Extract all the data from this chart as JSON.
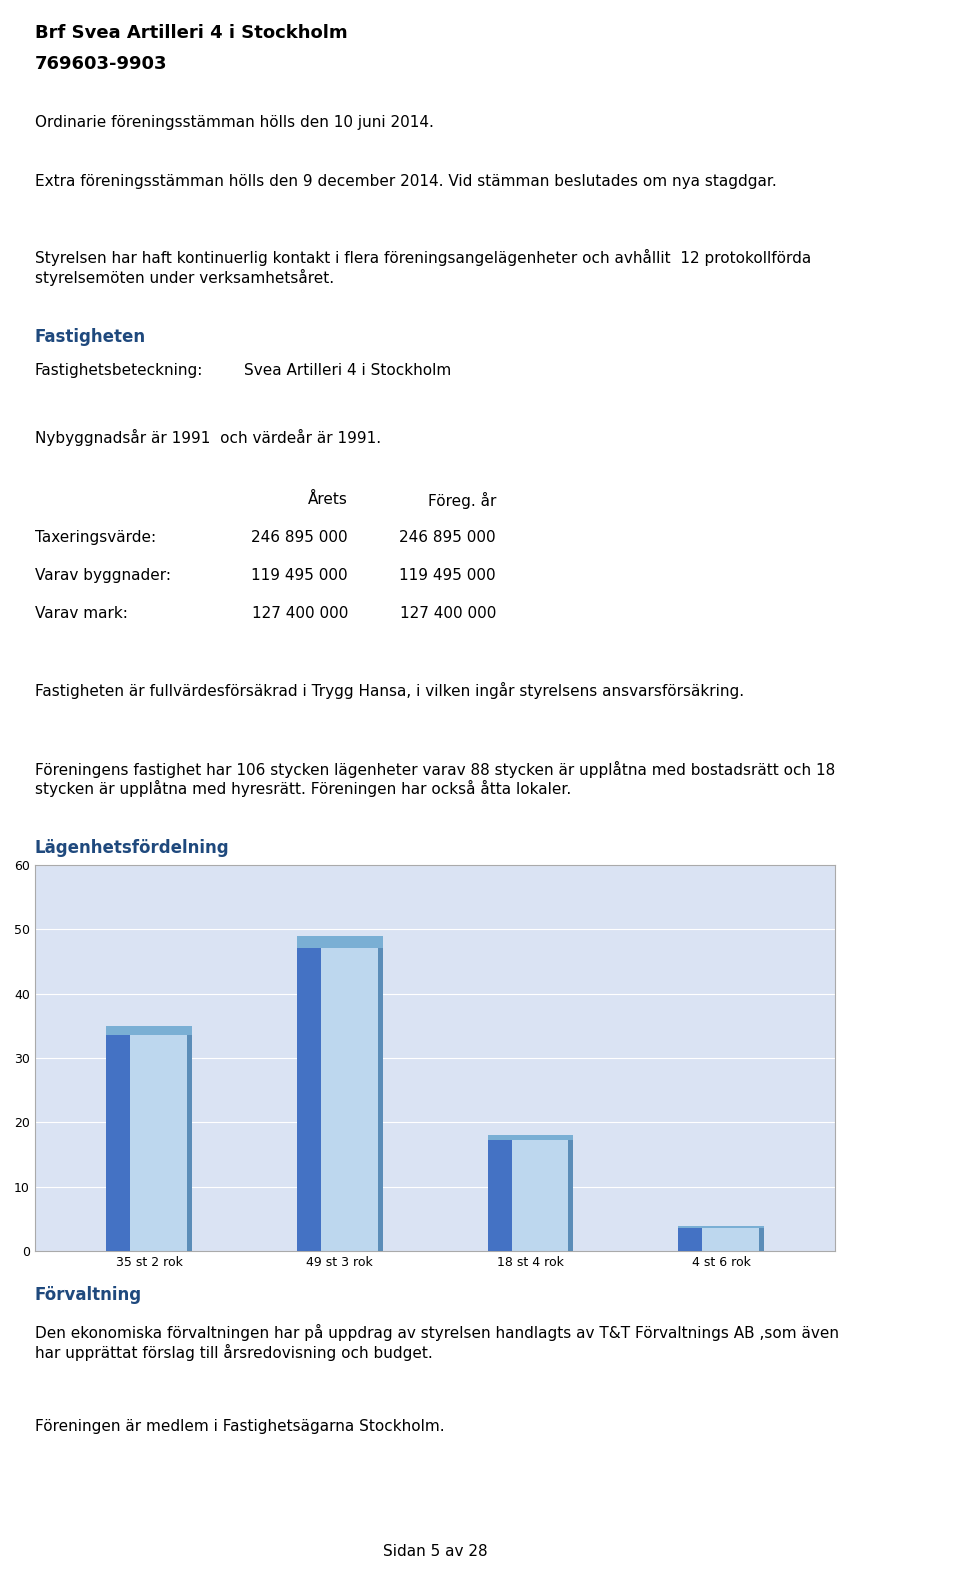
{
  "title_bold": "Brf Svea Artilleri 4 i Stockholm",
  "title_bold2": "769603-9903",
  "para1": "Ordinarie föreningsstämman hölls den 10 juni 2014.",
  "para2": "Extra föreningsstämman hölls den 9 december 2014. Vid stämman beslutades om nya stagdgar.",
  "para3": "Styrelsen har haft kontinuerlig kontakt i flera föreningsangelägenheter och avhållit  12 protokollförda\nstyrelsemöten under verksamhetsåret.",
  "section_fastigheten": "Fastigheten",
  "fastighet_label": "Fastighetsbeteckning:",
  "fastighet_value": "Svea Artilleri 4 i Stockholm",
  "nybyggnad": "Nybyggnadsår är 1991  och värdeår är 1991.",
  "table_header_col1": "Årets",
  "table_header_col2": "Föreg. år",
  "table_rows": [
    [
      "Taxeringsvärde:",
      "246 895 000",
      "246 895 000"
    ],
    [
      "Varav byggnader:",
      "119 495 000",
      "119 495 000"
    ],
    [
      "Varav mark:",
      "127 400 000",
      "127 400 000"
    ]
  ],
  "para_insurance": "Fastigheten är fullvärdesförsäkrad i Trygg Hansa, i vilken ingår styrelsens ansvarsförsäkring.",
  "para_foreningen": "Föreningens fastighet har 106 stycken lägenheter varav 88 stycken är upplåtna med bostadsrätt och 18\nstycken är upplåtna med hyresrätt. Föreningen har också åtta lokaler.",
  "section_lagenhet": "Lägenhetsfördelning",
  "bar_categories": [
    "35 st 2 rok",
    "49 st 3 rok",
    "18 st 4 rok",
    "4 st 6 rok"
  ],
  "bar_values": [
    35,
    49,
    18,
    4
  ],
  "bar_color_main": "#4472C4",
  "bar_color_light": "#BDD7EE",
  "bar_color_edge": "#5B8DB8",
  "chart_bg": "#DAE3F3",
  "chart_ylim": [
    0,
    60
  ],
  "chart_yticks": [
    0,
    10,
    20,
    30,
    40,
    50,
    60
  ],
  "section_forvaltning": "Förvaltning",
  "para_forvaltning": "Den ekonomiska förvaltningen har på uppdrag av styrelsen handlagts av T&T Förvaltnings AB ,som även\nhar upprättat förslag till årsredovisning och budget.",
  "para_medlem": "Föreningen är medlem i Fastighetsägarna Stockholm.",
  "footer": "Sidan 5 av 28",
  "section_color": "#1F497D",
  "text_color": "#000000",
  "font_size_body": 11,
  "font_size_heading": 13,
  "font_size_section": 12
}
